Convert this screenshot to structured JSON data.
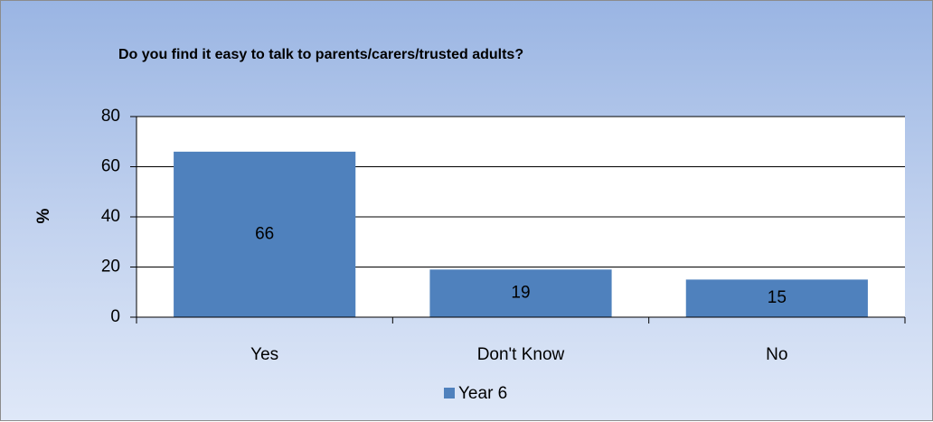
{
  "chart_data": {
    "type": "bar",
    "title": "Do you find it easy to talk to parents/carers/trusted adults?",
    "ylabel": "%",
    "xlabel": "",
    "categories": [
      "Yes",
      "Don't Know",
      "No"
    ],
    "series": [
      {
        "name": "Year 6",
        "values": [
          66,
          19,
          15
        ],
        "color": "#4f81bd"
      }
    ],
    "ylim": [
      0,
      80
    ],
    "yticks": [
      0,
      20,
      40,
      60,
      80
    ],
    "grid": true,
    "legend": "bottom",
    "plot_background": "#ffffff",
    "gridline_color": "#000000"
  }
}
